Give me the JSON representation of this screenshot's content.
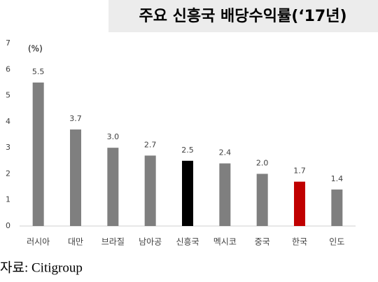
{
  "chart_data": {
    "type": "bar",
    "title": "주요 신흥국 배당수익률(‘17년)",
    "y_unit_label": "(%)",
    "source": "자료: Citigroup",
    "categories": [
      "러시아",
      "대만",
      "브라질",
      "남아공",
      "신흥국",
      "멕시코",
      "중국",
      "한국",
      "인도"
    ],
    "values": [
      5.5,
      3.7,
      3.0,
      2.7,
      2.5,
      2.4,
      2.0,
      1.7,
      1.4
    ],
    "value_labels": [
      "5.5",
      "3.7",
      "3.0",
      "2.7",
      "2.5",
      "2.4",
      "2.0",
      "1.7",
      "1.4"
    ],
    "colors": [
      "#7f7f7f",
      "#7f7f7f",
      "#7f7f7f",
      "#7f7f7f",
      "#000000",
      "#7f7f7f",
      "#7f7f7f",
      "#c00000",
      "#7f7f7f"
    ],
    "ylim": [
      0,
      7
    ],
    "yticks": [
      0,
      1,
      2,
      3,
      4,
      5,
      6,
      7
    ],
    "grid": false
  }
}
